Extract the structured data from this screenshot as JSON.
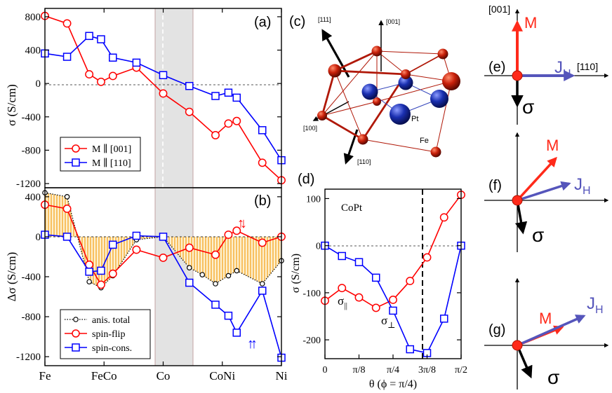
{
  "colors": {
    "red": "#ff0000",
    "blue": "#0000ff",
    "purple": "#5555bb",
    "orange": "#f5a623",
    "shade": "#e2e2e2",
    "black": "#000000",
    "fe_atom": "#c8200a",
    "pt_atom": "#1a2fb0"
  },
  "chart_data": [
    {
      "panel": "(a)",
      "type": "line",
      "ylabel": "σ (S/cm)",
      "ylim": [
        -1250,
        900
      ],
      "yticks": [
        -1200,
        -800,
        -400,
        0,
        400,
        800
      ],
      "xlim": [
        0,
        1
      ],
      "xtick_labels": [
        {
          "x": 0,
          "label": "Fe"
        },
        {
          "x": 0.25,
          "label": "FeCo"
        },
        {
          "x": 0.5,
          "label": "Co"
        },
        {
          "x": 0.75,
          "label": "CoNi"
        },
        {
          "x": 1,
          "label": "Ni"
        }
      ],
      "shaded_x": [
        0.453,
        0.612
      ],
      "dashed_x": 0.5,
      "hline": 0,
      "legend": [
        "M ∥ [001]",
        "M ∥ [110]"
      ],
      "series": [
        {
          "name": "M ∥ [001]",
          "marker": "circle",
          "color": "red",
          "x": [
            0,
            0.0937,
            0.1874,
            0.2373,
            0.2873,
            0.387,
            0.5,
            0.6107,
            0.7211,
            0.7758,
            0.8109,
            0.9191,
            1
          ],
          "y": [
            810,
            720,
            110,
            20,
            90,
            190,
            -120,
            -340,
            -620,
            -480,
            -450,
            -950,
            -1160
          ]
        },
        {
          "name": "M ∥ [110]",
          "marker": "square",
          "color": "blue",
          "x": [
            0,
            0.0937,
            0.1874,
            0.2373,
            0.2873,
            0.387,
            0.5,
            0.6107,
            0.7211,
            0.7758,
            0.8109,
            0.9191,
            1
          ],
          "y": [
            360,
            320,
            570,
            530,
            310,
            250,
            100,
            -30,
            -150,
            -110,
            -170,
            -560,
            -920
          ]
        }
      ]
    },
    {
      "panel": "(b)",
      "type": "line",
      "ylabel": "Δσ (S/cm)",
      "ylim": [
        -1290,
        490
      ],
      "yticks": [
        -1200,
        -800,
        -400,
        0,
        400
      ],
      "xlim": [
        0,
        1
      ],
      "xtick_labels": [
        {
          "x": 0,
          "label": "Fe"
        },
        {
          "x": 0.25,
          "label": "FeCo"
        },
        {
          "x": 0.5,
          "label": "Co"
        },
        {
          "x": 0.75,
          "label": "CoNi"
        },
        {
          "x": 1,
          "label": "Ni"
        }
      ],
      "shaded_x": [
        0.453,
        0.612
      ],
      "hline": 0,
      "fill_between_zero": "anis. total",
      "legend": [
        "anis. total",
        "spin-flip",
        "spin-cons."
      ],
      "arrow_labels": [
        "↑↓",
        "↑↑"
      ],
      "series": [
        {
          "name": "anis. total",
          "marker": "small-circle",
          "color": "black",
          "dotted": true,
          "x": [
            0,
            0.0937,
            0.1874,
            0.2373,
            0.2873,
            0.387,
            0.5,
            0.6107,
            0.6654,
            0.7211,
            0.7758,
            0.8109,
            0.9191,
            1
          ],
          "y": [
            440,
            400,
            -450,
            -510,
            -390,
            -30,
            0,
            -310,
            -380,
            -470,
            -390,
            -340,
            -470,
            -240
          ]
        },
        {
          "name": "spin-flip",
          "marker": "circle",
          "color": "red",
          "x": [
            0,
            0.0937,
            0.1874,
            0.2373,
            0.2873,
            0.387,
            0.5,
            0.6107,
            0.7211,
            0.7758,
            0.8109,
            0.9191,
            1
          ],
          "y": [
            320,
            280,
            -280,
            -480,
            -370,
            -130,
            -210,
            -110,
            -180,
            20,
            60,
            -60,
            0
          ]
        },
        {
          "name": "spin-cons.",
          "marker": "square",
          "color": "blue",
          "x": [
            0,
            0.0937,
            0.1874,
            0.2373,
            0.2873,
            0.387,
            0.5,
            0.6107,
            0.7211,
            0.7758,
            0.8109,
            0.9191,
            1
          ],
          "y": [
            20,
            0,
            -350,
            -340,
            -80,
            10,
            0,
            -460,
            -680,
            -790,
            -960,
            -540,
            -1210
          ]
        }
      ]
    },
    {
      "panel": "(d)",
      "type": "line",
      "title": "CoPt",
      "xlabel": "θ (ϕ = π/4)",
      "ylabel": "σ  (S/cm)",
      "xlim": [
        0,
        1.5708
      ],
      "ylim": [
        -240,
        120
      ],
      "yticks": [
        -200,
        -100,
        0,
        100
      ],
      "xtick_labels": [
        {
          "x": 0,
          "label": "0"
        },
        {
          "x": 0.3927,
          "label": "π/8"
        },
        {
          "x": 0.7854,
          "label": "π/4"
        },
        {
          "x": 1.1781,
          "label": "3π/8"
        },
        {
          "x": 1.5708,
          "label": "π/2"
        }
      ],
      "dashed_x": 1.2566,
      "hline": 0,
      "series": [
        {
          "name": "σ∥",
          "marker": "circle",
          "color": "red",
          "x": [
            0,
            0.1963,
            0.3927,
            0.589,
            0.7854,
            0.9817,
            1.1781,
            1.3744,
            1.5708
          ],
          "y": [
            -117,
            -90,
            -110,
            -132,
            -115,
            -75,
            -25,
            60,
            108
          ]
        },
        {
          "name": "σ⊥",
          "marker": "square",
          "color": "blue",
          "x": [
            0,
            0.1963,
            0.3927,
            0.589,
            0.7854,
            0.9817,
            1.1781,
            1.3744,
            1.5708
          ],
          "y": [
            0,
            -22,
            -35,
            -68,
            -138,
            -220,
            -228,
            -155,
            0
          ]
        }
      ]
    }
  ],
  "text": {
    "label_a": "(a)",
    "label_b": "(b)",
    "label_c": "(c)",
    "label_d": "(d)",
    "label_e": "(e)",
    "label_f": "(f)",
    "label_g": "(g)",
    "arrow_up_down": "↑↓",
    "arrow_up_up": "↑↑",
    "d_title": "CoPt",
    "d_sigma_par": "σ",
    "d_sigma_par_sub": "||",
    "d_sigma_perp": "σ",
    "d_sigma_perp_sub": "⊥",
    "crystal_111": "[111]",
    "crystal_001": "[001]",
    "crystal_100": "[100]",
    "crystal_110": "[110]",
    "crystal_pt": "Pt",
    "crystal_fe": "Fe",
    "e_001": "[001]",
    "e_110": "[110]",
    "M": "M",
    "JH_J": "J",
    "JH_sub": "H",
    "sigma": "σ"
  }
}
